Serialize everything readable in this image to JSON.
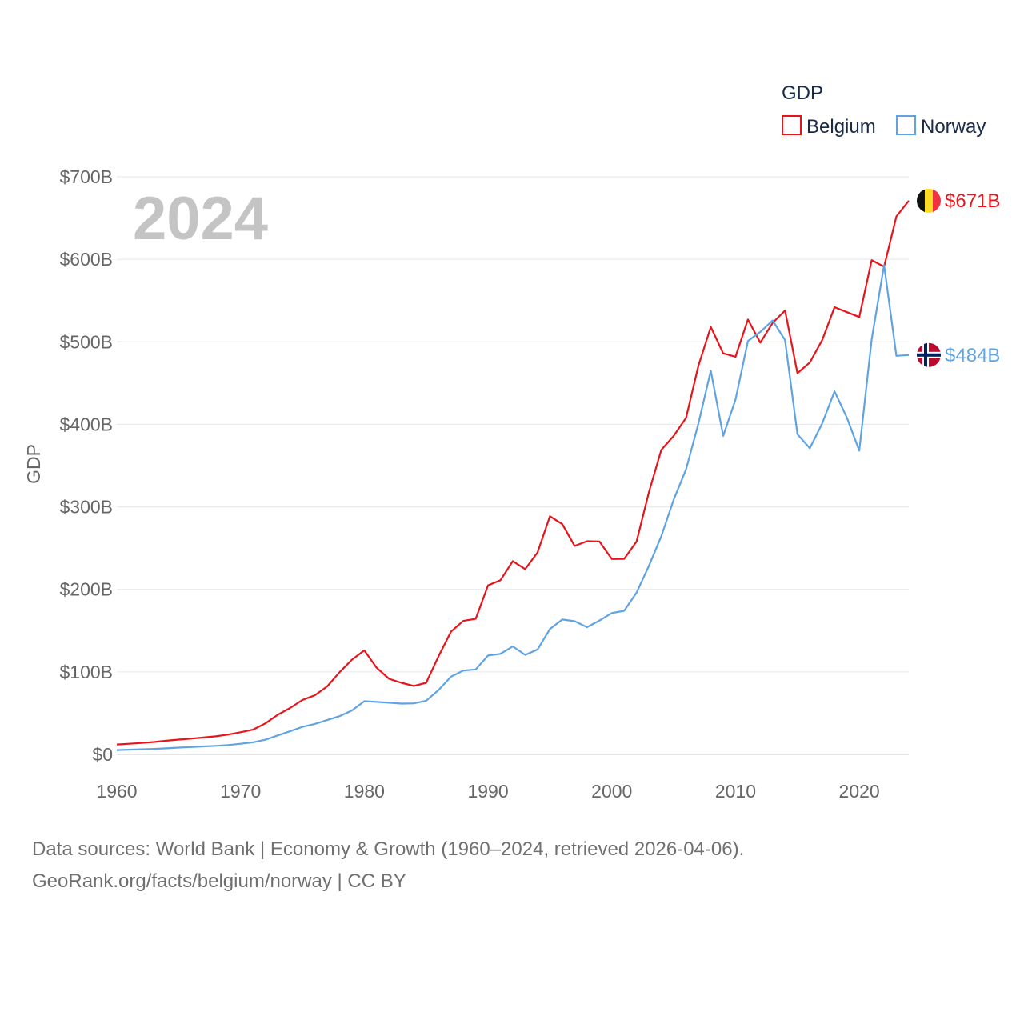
{
  "colors": {
    "belgium": "#e8141a",
    "norway": "#5fa3e3",
    "grid": "#e6e6e6",
    "axis": "#cccccc"
  },
  "chart_data": {
    "type": "line",
    "title": "GDP",
    "watermark": "2024",
    "ylabel": "GDP",
    "xlabel": "",
    "xlim": [
      1960,
      2024
    ],
    "ylim": [
      0,
      700
    ],
    "x_ticks": [
      {
        "value": 1960,
        "label": "1960"
      },
      {
        "value": 1970,
        "label": "1970"
      },
      {
        "value": 1980,
        "label": "1980"
      },
      {
        "value": 1990,
        "label": "1990"
      },
      {
        "value": 2000,
        "label": "2000"
      },
      {
        "value": 2010,
        "label": "2010"
      },
      {
        "value": 2020,
        "label": "2020"
      }
    ],
    "y_ticks": [
      {
        "value": 0,
        "label": "$0"
      },
      {
        "value": 100,
        "label": "$100B"
      },
      {
        "value": 200,
        "label": "$200B"
      },
      {
        "value": 300,
        "label": "$300B"
      },
      {
        "value": 400,
        "label": "$400B"
      },
      {
        "value": 500,
        "label": "$500B"
      },
      {
        "value": 600,
        "label": "$600B"
      },
      {
        "value": 700,
        "label": "$700B"
      }
    ],
    "legend": {
      "title": "GDP",
      "placement": "top-right"
    },
    "x": [
      1960,
      1961,
      1962,
      1963,
      1964,
      1965,
      1966,
      1967,
      1968,
      1969,
      1970,
      1971,
      1972,
      1973,
      1974,
      1975,
      1976,
      1977,
      1978,
      1979,
      1980,
      1981,
      1982,
      1983,
      1984,
      1985,
      1986,
      1987,
      1988,
      1989,
      1990,
      1991,
      1992,
      1993,
      1994,
      1995,
      1996,
      1997,
      1998,
      1999,
      2000,
      2001,
      2002,
      2003,
      2004,
      2005,
      2006,
      2007,
      2008,
      2009,
      2010,
      2011,
      2012,
      2013,
      2014,
      2015,
      2016,
      2017,
      2018,
      2019,
      2020,
      2021,
      2022,
      2023,
      2024
    ],
    "series": [
      {
        "name": "Belgium",
        "end_label": "$671B",
        "values": [
          12,
          12.9,
          13.9,
          15,
          16.6,
          17.9,
          19.1,
          20.5,
          21.9,
          24,
          26.9,
          30,
          37.5,
          48,
          56.2,
          65.9,
          71.6,
          82.4,
          99.6,
          114.8,
          126,
          105,
          91.6,
          86.8,
          83,
          86.8,
          119,
          148.7,
          161.8,
          164.2,
          205,
          211.1,
          234.2,
          224.5,
          244.7,
          288.6,
          279,
          252.7,
          258.4,
          258,
          236.8,
          237,
          258,
          318,
          369,
          386,
          408,
          471,
          518,
          486,
          482,
          527,
          499,
          523,
          538,
          462,
          475,
          502,
          542,
          536,
          530,
          599,
          591,
          652,
          671
        ]
      },
      {
        "name": "Norway",
        "end_label": "$484B",
        "values": [
          5.2,
          5.7,
          6.2,
          6.7,
          7.4,
          8.2,
          8.9,
          9.7,
          10.4,
          11.3,
          12.9,
          14.6,
          17.7,
          23,
          28,
          33.4,
          36.9,
          41.6,
          46.3,
          53.2,
          64.5,
          63.6,
          62.6,
          61.6,
          61.9,
          65.1,
          78,
          94.1,
          101.6,
          103,
          119.8,
          121.9,
          130.9,
          120.6,
          127.1,
          152,
          163.5,
          161.4,
          154.2,
          162.2,
          171.3,
          174,
          196,
          228.6,
          264.4,
          308.7,
          345.5,
          400.9,
          465,
          386,
          430,
          501,
          512,
          526,
          502,
          388,
          371,
          401,
          440,
          408,
          368,
          503,
          593,
          483,
          484
        ]
      }
    ]
  },
  "source": {
    "line1": "Data sources: World Bank | Economy & Growth (1960–2024, retrieved 2026-04-06).",
    "line2": "GeoRank.org/facts/belgium/norway | CC BY"
  }
}
